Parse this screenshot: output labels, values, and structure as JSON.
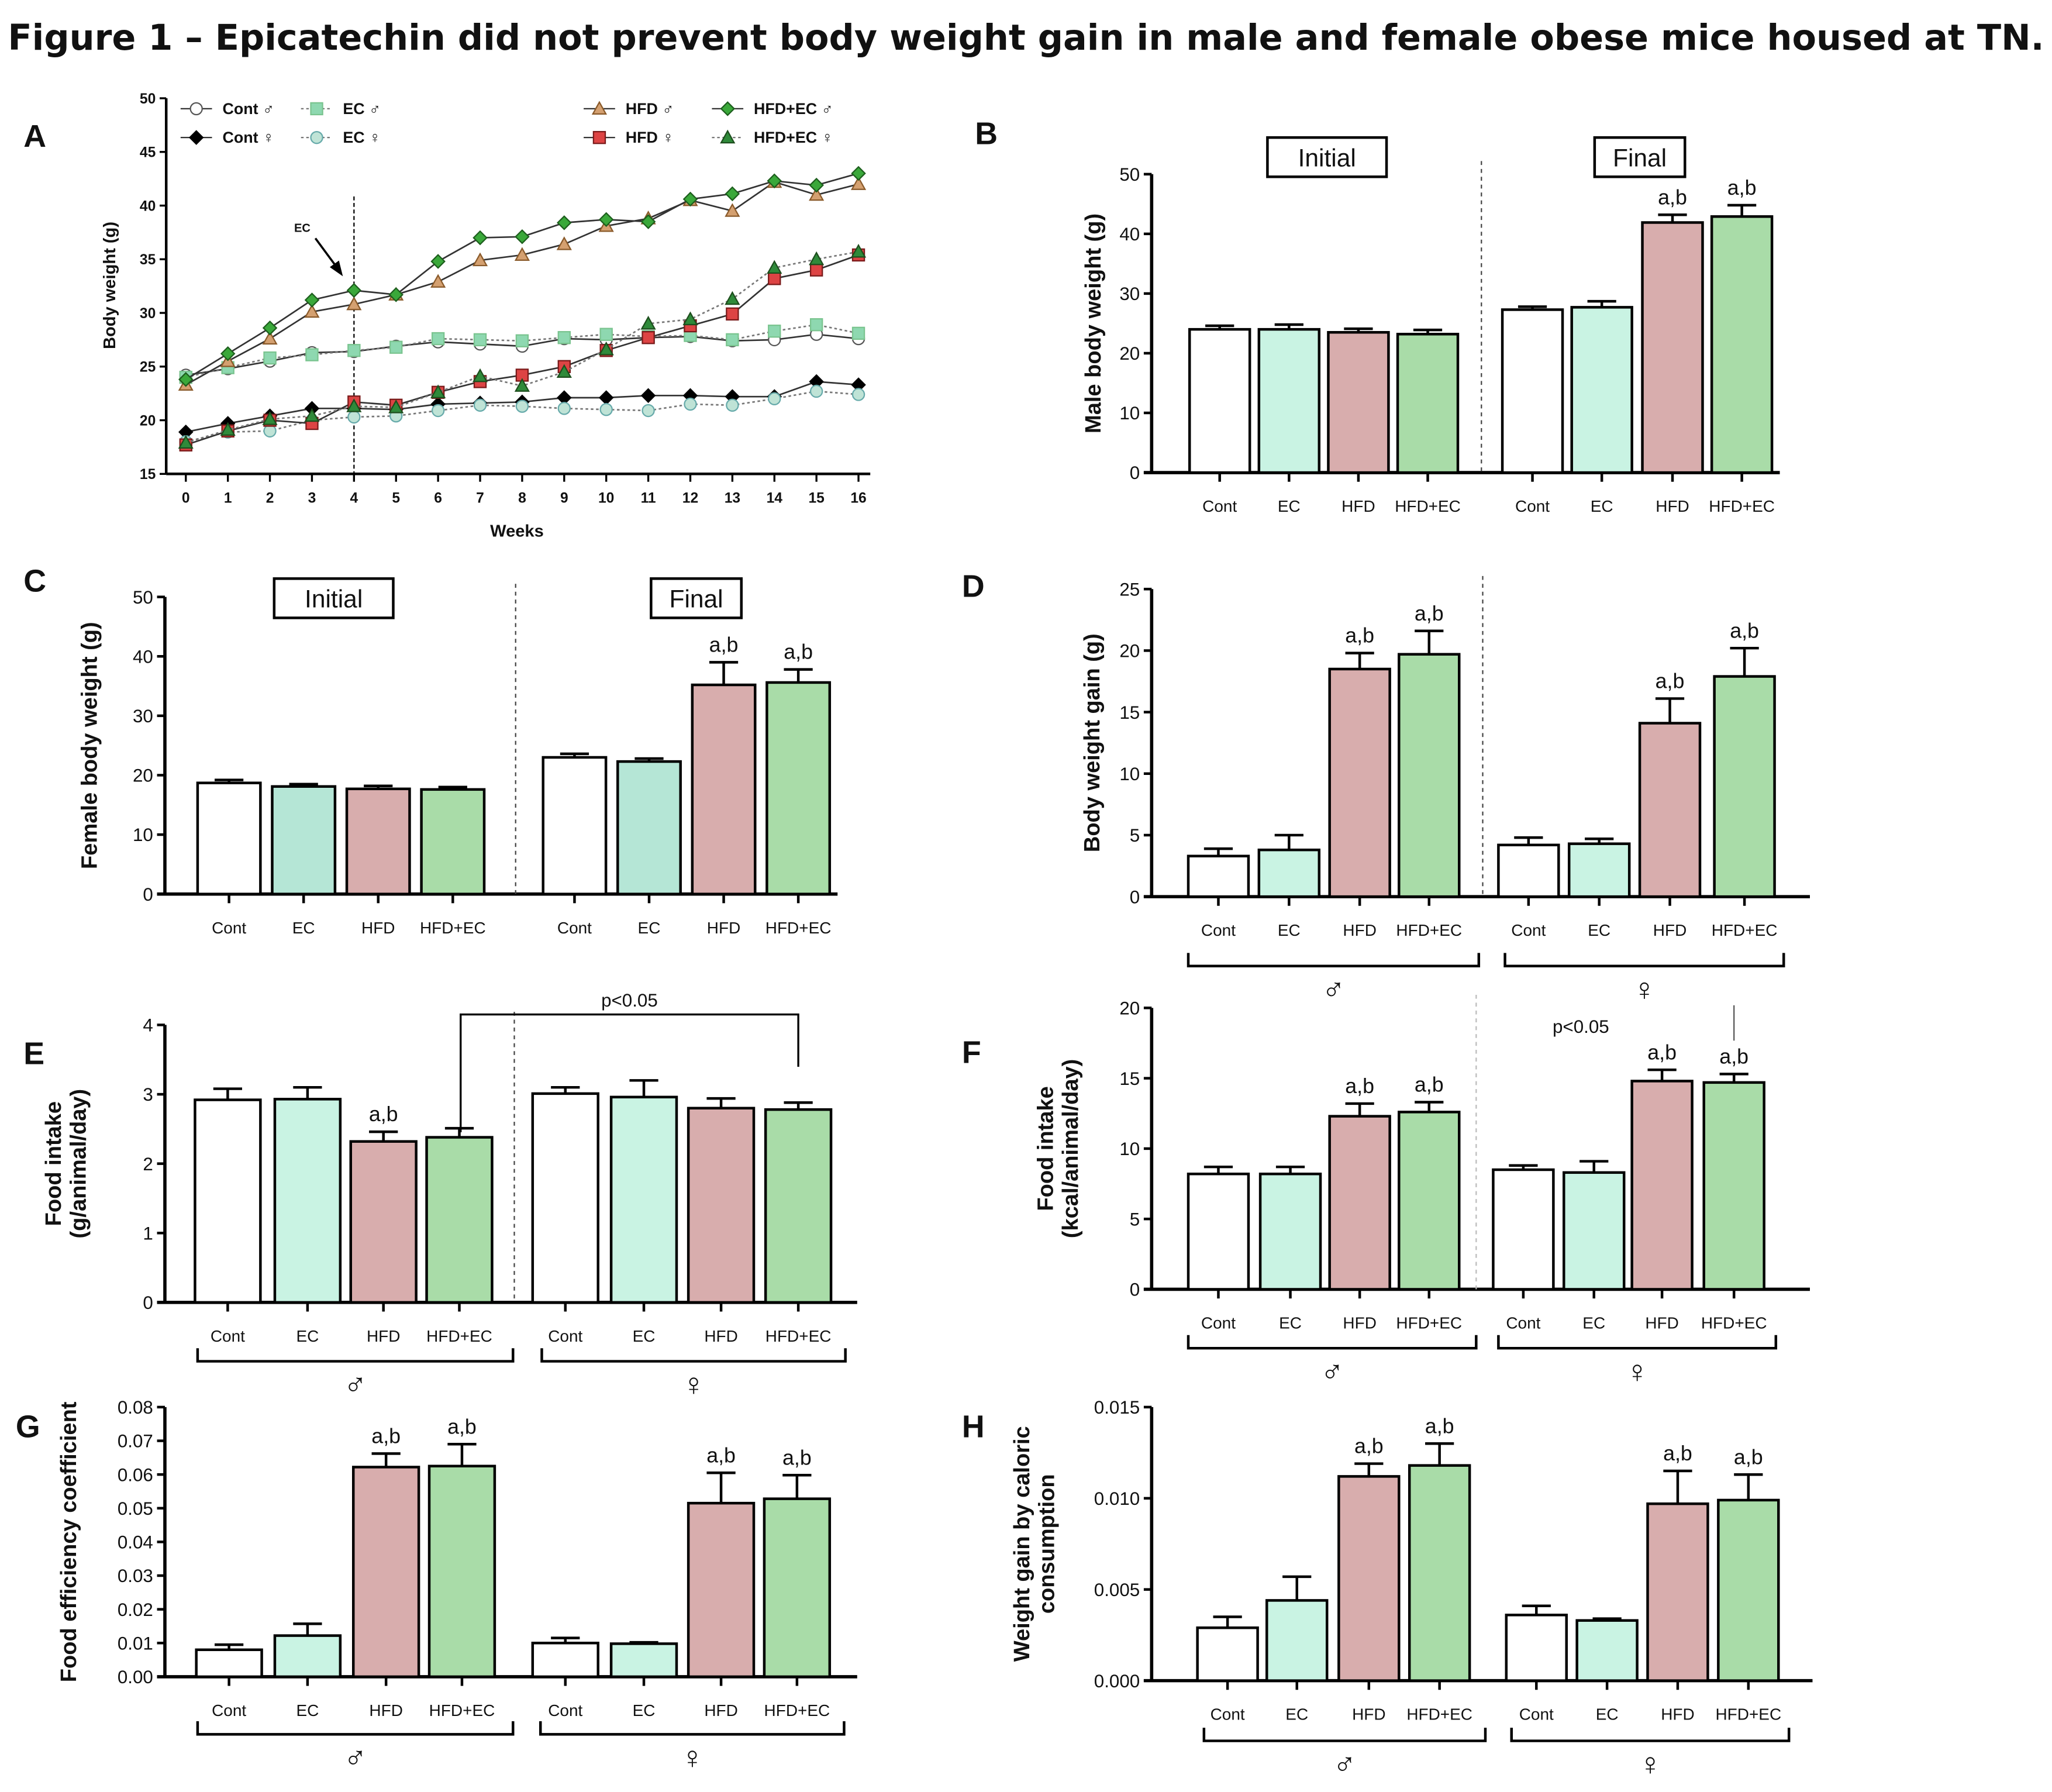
{
  "title": "Figure 1 – Epicatechin did not prevent body weight gain in male and female obese mice housed at TN.",
  "colors": {
    "Cont": "#ffffff",
    "EC": "#c9f3e3",
    "EC_C": "#b5e6d6",
    "HFD": "#d8adad",
    "HFD+EC": "#a9dca8",
    "HFD_line": "#d4a070",
    "HFD_female": "#dd4444",
    "HFD+EC_line": "#3aa83a",
    "HFD+EC_female": "#2f8a3a",
    "EC_line": "#8ed8b0",
    "EC_female": "#bfe3d6"
  },
  "chart_data": [
    {
      "panel": "A",
      "type": "line",
      "xlabel": "Weeks",
      "ylabel": "Body weight (g)",
      "ylim": [
        15,
        50
      ],
      "yticks": [
        "15",
        "20",
        "25",
        "30",
        "35",
        "40",
        "45",
        "50"
      ],
      "x": [
        0,
        1,
        2,
        3,
        4,
        5,
        6,
        7,
        8,
        9,
        10,
        11,
        12,
        13,
        14,
        15,
        16
      ],
      "xticks": [
        "0",
        "1",
        "2",
        "3",
        "4",
        "5",
        "6",
        "7",
        "8",
        "9",
        "10",
        "11",
        "12",
        "13",
        "14",
        "15",
        "16"
      ],
      "annotation": "EC",
      "annotation_week": 4,
      "series": [
        {
          "name": "Cont ♂",
          "marker": "circle-open",
          "dash": false,
          "values": [
            24.2,
            24.8,
            25.5,
            26.3,
            26.4,
            26.9,
            27.3,
            27.1,
            26.9,
            27.6,
            27.5,
            27.7,
            27.8,
            27.4,
            27.5,
            28.0,
            27.6
          ]
        },
        {
          "name": "EC ♂",
          "marker": "square",
          "dash": true,
          "values": [
            24.0,
            24.9,
            25.8,
            26.1,
            26.5,
            26.8,
            27.6,
            27.5,
            27.4,
            27.7,
            28.0,
            27.8,
            27.9,
            27.5,
            28.3,
            28.9,
            28.1
          ]
        },
        {
          "name": "Cont ♀",
          "marker": "diamond-black",
          "dash": false,
          "values": [
            18.9,
            19.7,
            20.4,
            21.1,
            21.1,
            21.0,
            21.5,
            21.6,
            21.7,
            22.1,
            22.1,
            22.3,
            22.3,
            22.2,
            22.2,
            23.6,
            23.3
          ]
        },
        {
          "name": "EC ♀",
          "marker": "circle",
          "dash": true,
          "values": [
            18.0,
            18.9,
            19.0,
            20.0,
            20.3,
            20.4,
            20.9,
            21.4,
            21.3,
            21.1,
            21.0,
            20.9,
            21.5,
            21.4,
            22.0,
            22.7,
            22.4
          ]
        },
        {
          "name": "HFD ♂",
          "marker": "triangle",
          "dash": false,
          "values": [
            23.3,
            25.5,
            27.6,
            30.1,
            30.8,
            31.7,
            32.9,
            34.9,
            35.4,
            36.4,
            38.1,
            38.8,
            40.5,
            39.5,
            42.2,
            41.0,
            42.0
          ]
        },
        {
          "name": "HFD ♀",
          "marker": "square-red",
          "dash": false,
          "values": [
            17.7,
            19.0,
            20.0,
            19.7,
            21.7,
            21.4,
            22.6,
            23.6,
            24.2,
            25.0,
            26.5,
            27.7,
            28.8,
            29.9,
            33.2,
            34.0,
            35.4
          ]
        },
        {
          "name": "HFD+EC ♂",
          "marker": "diamond-green",
          "dash": false,
          "values": [
            23.8,
            26.2,
            28.6,
            31.2,
            32.1,
            31.7,
            34.8,
            37.0,
            37.1,
            38.4,
            38.7,
            38.5,
            40.6,
            41.1,
            42.3,
            41.9,
            43.0
          ]
        },
        {
          "name": "HFD+EC ♀",
          "marker": "triangle-green",
          "dash": true,
          "values": [
            17.9,
            19.1,
            20.1,
            20.4,
            21.3,
            21.2,
            22.6,
            24.1,
            23.2,
            24.5,
            26.6,
            29.0,
            29.4,
            31.3,
            34.2,
            35.0,
            35.7
          ]
        }
      ]
    },
    {
      "panel": "B",
      "type": "bar",
      "ylabel": [
        "Male body weight (g)"
      ],
      "ylim": [
        0,
        50
      ],
      "yticks": [
        "0",
        "10",
        "20",
        "30",
        "40",
        "50"
      ],
      "groups": [
        "Initial",
        "Final"
      ],
      "group_style": "box",
      "categories": [
        "Cont",
        "EC",
        "HFD",
        "HFD+EC",
        "Cont",
        "EC",
        "HFD",
        "HFD+EC"
      ],
      "values": [
        24.0,
        24.0,
        23.5,
        23.2,
        27.3,
        27.7,
        41.9,
        42.9
      ],
      "errors": [
        0.6,
        0.8,
        0.6,
        0.7,
        0.5,
        1.0,
        1.3,
        1.9
      ],
      "annotations": [
        "",
        "",
        "",
        "",
        "",
        "",
        "a,b",
        "a,b"
      ]
    },
    {
      "panel": "C",
      "type": "bar",
      "ylabel": [
        "Female body weight (g)"
      ],
      "ylim": [
        0,
        50
      ],
      "yticks": [
        "0",
        "10",
        "20",
        "30",
        "40",
        "50"
      ],
      "groups": [
        "Initial",
        "Final"
      ],
      "group_style": "box",
      "categories": [
        "Cont",
        "EC",
        "HFD",
        "HFD+EC",
        "Cont",
        "EC",
        "HFD",
        "HFD+EC"
      ],
      "values": [
        18.7,
        18.1,
        17.7,
        17.6,
        23.0,
        22.3,
        35.2,
        35.6
      ],
      "errors": [
        0.5,
        0.4,
        0.5,
        0.4,
        0.6,
        0.5,
        3.8,
        2.2
      ],
      "annotations": [
        "",
        "",
        "",
        "",
        "",
        "",
        "a,b",
        "a,b"
      ]
    },
    {
      "panel": "D",
      "type": "bar",
      "ylabel": [
        "Body weight gain (g)"
      ],
      "ylim": [
        0,
        25
      ],
      "yticks": [
        "0",
        "5",
        "10",
        "15",
        "20",
        "25"
      ],
      "groups": [
        "♂",
        "♀"
      ],
      "group_style": "bracket",
      "categories": [
        "Cont",
        "EC",
        "HFD",
        "HFD+EC",
        "Cont",
        "EC",
        "HFD",
        "HFD+EC"
      ],
      "values": [
        3.3,
        3.8,
        18.5,
        19.7,
        4.2,
        4.3,
        14.1,
        17.9
      ],
      "errors": [
        0.6,
        1.2,
        1.3,
        1.9,
        0.6,
        0.4,
        2.0,
        2.3
      ],
      "annotations": [
        "",
        "",
        "a,b",
        "a,b",
        "",
        "",
        "a,b",
        "a,b"
      ]
    },
    {
      "panel": "E",
      "type": "bar",
      "ylabel": [
        "Food intake",
        "(g/animal/day)"
      ],
      "ylim": [
        0,
        4
      ],
      "yticks": [
        "0",
        "1",
        "2",
        "3",
        "4"
      ],
      "groups": [
        "♂",
        "♀"
      ],
      "group_style": "bracket",
      "categories": [
        "Cont",
        "EC",
        "HFD",
        "HFD+EC",
        "Cont",
        "EC",
        "HFD",
        "HFD+EC"
      ],
      "values": [
        2.92,
        2.93,
        2.32,
        2.38,
        3.01,
        2.96,
        2.8,
        2.78
      ],
      "errors": [
        0.16,
        0.17,
        0.14,
        0.13,
        0.09,
        0.24,
        0.14,
        0.1
      ],
      "annotations": [
        "",
        "",
        "a,b",
        "",
        "",
        "",
        "",
        ""
      ],
      "comparison": "p<0.05"
    },
    {
      "panel": "F",
      "type": "bar",
      "ylabel": [
        "Food intake",
        "(kcal/animal/day)"
      ],
      "ylim": [
        0,
        20
      ],
      "yticks": [
        "0",
        "5",
        "10",
        "15",
        "20"
      ],
      "groups": [
        "♂",
        "♀"
      ],
      "group_style": "bracket",
      "categories": [
        "Cont",
        "EC",
        "HFD",
        "HFD+EC",
        "Cont",
        "EC",
        "HFD",
        "HFD+EC"
      ],
      "values": [
        8.2,
        8.2,
        12.3,
        12.6,
        8.5,
        8.3,
        14.8,
        14.7
      ],
      "errors": [
        0.5,
        0.5,
        0.9,
        0.7,
        0.3,
        0.8,
        0.8,
        0.6
      ],
      "annotations": [
        "",
        "",
        "a,b",
        "a,b",
        "",
        "",
        "a,b",
        "a,b"
      ],
      "comparison": "p<0.05"
    },
    {
      "panel": "G",
      "type": "bar",
      "ylabel": [
        "Food efficiency coefficient"
      ],
      "ylim": [
        0,
        0.08
      ],
      "yticks": [
        "0.00",
        "0.01",
        "0.02",
        "0.03",
        "0.04",
        "0.05",
        "0.06",
        "0.07",
        "0.08"
      ],
      "groups": [
        "♂",
        "♀"
      ],
      "group_style": "bracket",
      "categories": [
        "Cont",
        "EC",
        "HFD",
        "HFD+EC",
        "Cont",
        "EC",
        "HFD",
        "HFD+EC"
      ],
      "values": [
        0.008,
        0.0122,
        0.0622,
        0.0625,
        0.01,
        0.0098,
        0.0515,
        0.0528
      ],
      "errors": [
        0.0015,
        0.0035,
        0.004,
        0.0065,
        0.0015,
        0.0004,
        0.009,
        0.007
      ],
      "annotations": [
        "",
        "",
        "a,b",
        "a,b",
        "",
        "",
        "a,b",
        "a,b"
      ]
    },
    {
      "panel": "H",
      "type": "bar",
      "ylabel": [
        "Weight gain by caloric",
        "consumption"
      ],
      "ylim": [
        0,
        0.015
      ],
      "yticks": [
        "0.000",
        "0.005",
        "0.010",
        "0.015"
      ],
      "groups": [
        "♂",
        "♀"
      ],
      "group_style": "bracket",
      "categories": [
        "Cont",
        "EC",
        "HFD",
        "HFD+EC",
        "Cont",
        "EC",
        "HFD",
        "HFD+EC"
      ],
      "values": [
        0.0029,
        0.0044,
        0.0112,
        0.0118,
        0.0036,
        0.0033,
        0.0097,
        0.0099
      ],
      "errors": [
        0.0006,
        0.0013,
        0.0007,
        0.0012,
        0.0005,
        0.0001,
        0.0018,
        0.0014
      ],
      "annotations": [
        "",
        "",
        "a,b",
        "a,b",
        "",
        "",
        "a,b",
        "a,b"
      ]
    }
  ]
}
